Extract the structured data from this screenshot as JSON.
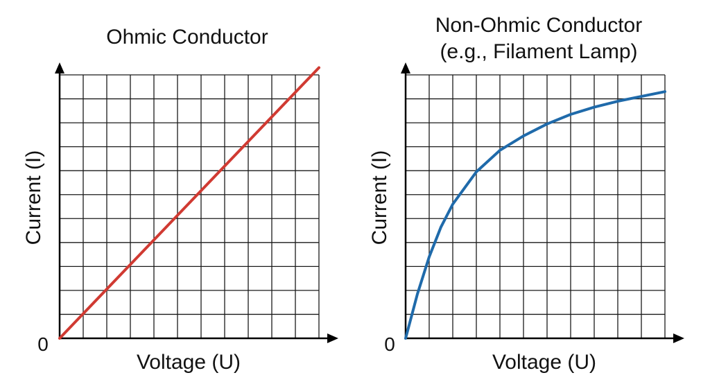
{
  "chart_data": [
    {
      "type": "line",
      "title_lines": [
        "Ohmic Conductor"
      ],
      "xlabel": "Voltage (U)",
      "ylabel": "Current (I)",
      "origin_label": "0",
      "xlim": [
        0,
        11
      ],
      "ylim": [
        0,
        11
      ],
      "grid": true,
      "series": [
        {
          "color": "#d03a32",
          "x": [
            0,
            11
          ],
          "y": [
            0,
            11.3
          ]
        }
      ]
    },
    {
      "type": "line",
      "title_lines": [
        "Non-Ohmic Conductor",
        "(e.g., Filament Lamp)"
      ],
      "xlabel": "Voltage (U)",
      "ylabel": "Current (I)",
      "origin_label": "0",
      "xlim": [
        0,
        11
      ],
      "ylim": [
        0,
        11
      ],
      "grid": true,
      "series": [
        {
          "color": "#1f6aaa",
          "x": [
            0,
            0.5,
            1,
            1.5,
            2,
            3,
            4,
            5,
            6,
            7,
            8,
            9,
            10,
            11
          ],
          "y": [
            0,
            1.85,
            3.4,
            4.65,
            5.6,
            6.95,
            7.85,
            8.45,
            8.95,
            9.35,
            9.65,
            9.9,
            10.1,
            10.3
          ]
        }
      ]
    }
  ]
}
